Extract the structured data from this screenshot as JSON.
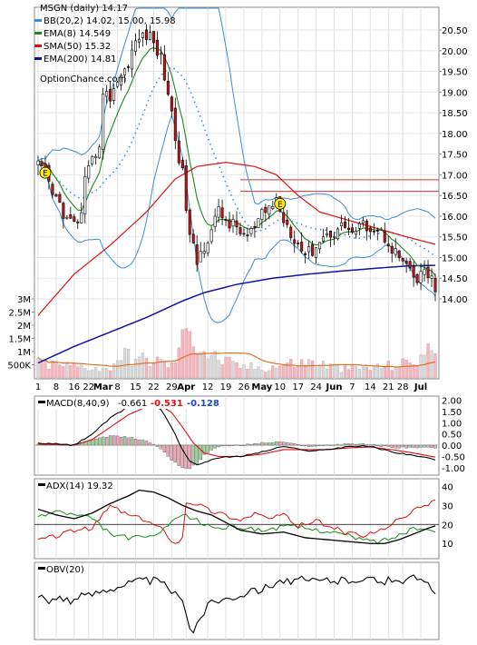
{
  "chart_data": {
    "type": "line",
    "symbol": "MSGN",
    "title": "MSGN (daily) 14.17",
    "legend": [
      {
        "label": "BB(20,2) 14.02, 15.00, 15.98",
        "color": "#3b8fd6"
      },
      {
        "label": "EMA(8) 14.549",
        "color": "#1a8a1a"
      },
      {
        "label": "SMA(50) 15.32",
        "color": "#dd1111"
      },
      {
        "label": "EMA(200) 14.81",
        "color": "#1111aa"
      }
    ],
    "watermark": "OptionChance.com",
    "x_tick_labels": [
      "1",
      "8",
      "16",
      "22",
      "Mar",
      "8",
      "15",
      "22",
      "29",
      "Apr",
      "12",
      "19",
      "26",
      "May",
      "10",
      "17",
      "24",
      "Jun",
      "7",
      "14",
      "21",
      "28",
      "Jul"
    ],
    "x_tick_bold": [
      "Mar",
      "Apr",
      "May",
      "Jun",
      "Jul"
    ],
    "price_axis": {
      "ticks": [
        "20.50",
        "20.00",
        "19.50",
        "19.00",
        "18.50",
        "18.00",
        "17.50",
        "17.00",
        "16.50",
        "16.00",
        "15.50",
        "15.00",
        "14.50",
        "14.00"
      ],
      "ylim": [
        13.85,
        20.6
      ]
    },
    "volume_axis": {
      "ticks": [
        "3M",
        "2.5M",
        "2M",
        "1.5M",
        "1M",
        "500K"
      ],
      "ylim": [
        0,
        3200000
      ]
    },
    "horizontal_lines": [
      16.88,
      16.6
    ],
    "earnings_markers": [
      {
        "label": "E",
        "day": 2,
        "price": 17.05
      },
      {
        "label": "E",
        "day": 67,
        "price": 16.3
      }
    ],
    "price_anchors": [
      [
        0,
        17.2
      ],
      [
        2,
        17.0
      ],
      [
        4,
        16.5
      ],
      [
        6,
        16.3
      ],
      [
        8,
        15.9
      ],
      [
        10,
        15.8
      ],
      [
        12,
        16.0
      ],
      [
        13,
        16.8
      ],
      [
        15,
        17.3
      ],
      [
        17,
        17.8
      ],
      [
        18,
        18.9
      ],
      [
        20,
        18.9
      ],
      [
        22,
        19.3
      ],
      [
        24,
        19.5
      ],
      [
        26,
        20.0
      ],
      [
        28,
        20.3
      ],
      [
        30,
        20.4
      ],
      [
        32,
        20.2
      ],
      [
        34,
        19.8
      ],
      [
        36,
        19.0
      ],
      [
        38,
        17.9
      ],
      [
        40,
        17.0
      ],
      [
        42,
        15.5
      ],
      [
        44,
        14.9
      ],
      [
        46,
        15.3
      ],
      [
        48,
        15.7
      ],
      [
        50,
        16.1
      ],
      [
        52,
        15.9
      ],
      [
        55,
        15.7
      ],
      [
        58,
        15.5
      ],
      [
        60,
        15.7
      ],
      [
        62,
        16.0
      ],
      [
        64,
        16.2
      ],
      [
        66,
        16.4
      ],
      [
        67,
        16.1
      ],
      [
        69,
        15.8
      ],
      [
        71,
        15.5
      ],
      [
        73,
        15.2
      ],
      [
        75,
        15.1
      ],
      [
        77,
        15.3
      ],
      [
        79,
        15.5
      ],
      [
        81,
        15.6
      ],
      [
        83,
        15.7
      ],
      [
        85,
        15.8
      ],
      [
        87,
        15.6
      ],
      [
        89,
        15.7
      ],
      [
        91,
        15.8
      ],
      [
        93,
        15.7
      ],
      [
        95,
        15.6
      ],
      [
        97,
        15.4
      ],
      [
        99,
        15.1
      ],
      [
        101,
        14.9
      ],
      [
        103,
        14.6
      ],
      [
        105,
        14.4
      ],
      [
        107,
        14.7
      ],
      [
        109,
        14.5
      ],
      [
        110,
        14.17
      ]
    ],
    "volume_anchors": [
      [
        0,
        550000
      ],
      [
        5,
        500000
      ],
      [
        10,
        450000
      ],
      [
        15,
        420000
      ],
      [
        19,
        300000
      ],
      [
        23,
        900000
      ],
      [
        28,
        700000
      ],
      [
        33,
        650000
      ],
      [
        37,
        450000
      ],
      [
        41,
        1700000
      ],
      [
        42,
        2700000
      ],
      [
        43,
        1500000
      ],
      [
        47,
        900000
      ],
      [
        55,
        450000
      ],
      [
        63,
        380000
      ],
      [
        70,
        550000
      ],
      [
        76,
        600000
      ],
      [
        84,
        350000
      ],
      [
        92,
        380000
      ],
      [
        100,
        500000
      ],
      [
        104,
        650000
      ],
      [
        108,
        950000
      ],
      [
        110,
        1500000
      ]
    ],
    "macd_panel": {
      "label": "MACD(8,40,9)",
      "values": [
        "-0.661",
        "-0.531",
        "-0.128"
      ],
      "colors": [
        "#000000",
        "#dd1111",
        "#2244cc"
      ],
      "ticks": [
        "2.00",
        "1.50",
        "1.00",
        "0.50",
        "0.00",
        "-0.50",
        "-1.00"
      ],
      "ylim": [
        -1.25,
        2.1
      ],
      "macd_anchors": [
        [
          0,
          0.1
        ],
        [
          10,
          0.0
        ],
        [
          15,
          0.5
        ],
        [
          20,
          1.2
        ],
        [
          25,
          1.7
        ],
        [
          30,
          1.9
        ],
        [
          34,
          1.6
        ],
        [
          37,
          0.8
        ],
        [
          40,
          -0.2
        ],
        [
          42,
          -0.7
        ],
        [
          44,
          -0.9
        ],
        [
          46,
          -0.75
        ],
        [
          50,
          -0.55
        ],
        [
          56,
          -0.5
        ],
        [
          62,
          -0.3
        ],
        [
          68,
          -0.05
        ],
        [
          74,
          -0.25
        ],
        [
          80,
          -0.2
        ],
        [
          86,
          -0.05
        ],
        [
          92,
          -0.05
        ],
        [
          98,
          -0.3
        ],
        [
          104,
          -0.45
        ],
        [
          110,
          -0.66
        ]
      ],
      "signal_anchors": [
        [
          0,
          0.05
        ],
        [
          10,
          0.0
        ],
        [
          15,
          0.25
        ],
        [
          20,
          0.8
        ],
        [
          25,
          1.35
        ],
        [
          30,
          1.7
        ],
        [
          34,
          1.75
        ],
        [
          37,
          1.45
        ],
        [
          40,
          0.8
        ],
        [
          43,
          0.1
        ],
        [
          46,
          -0.35
        ],
        [
          50,
          -0.5
        ],
        [
          56,
          -0.5
        ],
        [
          62,
          -0.4
        ],
        [
          68,
          -0.2
        ],
        [
          74,
          -0.2
        ],
        [
          80,
          -0.2
        ],
        [
          86,
          -0.12
        ],
        [
          92,
          -0.08
        ],
        [
          98,
          -0.2
        ],
        [
          104,
          -0.35
        ],
        [
          110,
          -0.53
        ]
      ]
    },
    "adx_panel": {
      "label": "ADX(14) 19.32",
      "ticks": [
        "40",
        "30",
        "20",
        "10"
      ],
      "ylim": [
        2,
        44
      ],
      "reference_lines": [
        20
      ],
      "adx_anchors": [
        [
          0,
          28
        ],
        [
          5,
          25
        ],
        [
          10,
          23
        ],
        [
          15,
          26
        ],
        [
          20,
          31
        ],
        [
          25,
          35
        ],
        [
          28,
          38
        ],
        [
          32,
          37
        ],
        [
          36,
          34
        ],
        [
          40,
          30
        ],
        [
          44,
          27
        ],
        [
          48,
          25
        ],
        [
          52,
          21
        ],
        [
          56,
          17
        ],
        [
          62,
          15
        ],
        [
          68,
          16
        ],
        [
          74,
          13
        ],
        [
          80,
          12
        ],
        [
          86,
          11
        ],
        [
          92,
          10
        ],
        [
          96,
          10
        ],
        [
          100,
          12
        ],
        [
          104,
          15
        ],
        [
          108,
          18
        ],
        [
          110,
          19.3
        ]
      ],
      "plus_di_anchors": [
        [
          0,
          12
        ],
        [
          5,
          14
        ],
        [
          10,
          17
        ],
        [
          15,
          18
        ],
        [
          20,
          30
        ],
        [
          25,
          25
        ],
        [
          30,
          22
        ],
        [
          34,
          18
        ],
        [
          38,
          10
        ],
        [
          40,
          13
        ],
        [
          41,
          32
        ],
        [
          44,
          31
        ],
        [
          48,
          27
        ],
        [
          52,
          25
        ],
        [
          56,
          22
        ],
        [
          60,
          26
        ],
        [
          64,
          23
        ],
        [
          68,
          25
        ],
        [
          72,
          19
        ],
        [
          76,
          22
        ],
        [
          80,
          20
        ],
        [
          86,
          15
        ],
        [
          90,
          14
        ],
        [
          94,
          16
        ],
        [
          98,
          20
        ],
        [
          102,
          25
        ],
        [
          105,
          28
        ],
        [
          108,
          31
        ],
        [
          110,
          33
        ]
      ],
      "minus_di_anchors": [
        [
          0,
          24
        ],
        [
          5,
          27
        ],
        [
          10,
          25
        ],
        [
          15,
          23
        ],
        [
          20,
          15
        ],
        [
          25,
          13
        ],
        [
          30,
          13
        ],
        [
          34,
          16
        ],
        [
          38,
          22
        ],
        [
          40,
          25
        ],
        [
          42,
          24
        ],
        [
          46,
          20
        ],
        [
          50,
          18
        ],
        [
          54,
          19
        ],
        [
          58,
          18
        ],
        [
          62,
          17
        ],
        [
          66,
          18
        ],
        [
          70,
          19
        ],
        [
          74,
          18
        ],
        [
          78,
          17
        ],
        [
          82,
          16
        ],
        [
          86,
          14
        ],
        [
          90,
          12
        ],
        [
          94,
          11
        ],
        [
          98,
          13
        ],
        [
          102,
          16
        ],
        [
          105,
          18
        ],
        [
          108,
          17
        ],
        [
          110,
          16
        ]
      ]
    },
    "obv_panel": {
      "label": "OBV(20)",
      "obv_anchors": [
        [
          0,
          0.55
        ],
        [
          3,
          0.48
        ],
        [
          6,
          0.58
        ],
        [
          9,
          0.5
        ],
        [
          12,
          0.56
        ],
        [
          15,
          0.6
        ],
        [
          18,
          0.66
        ],
        [
          21,
          0.7
        ],
        [
          24,
          0.74
        ],
        [
          27,
          0.78
        ],
        [
          30,
          0.8
        ],
        [
          33,
          0.78
        ],
        [
          36,
          0.7
        ],
        [
          39,
          0.55
        ],
        [
          41,
          0.35
        ],
        [
          42,
          0.15
        ],
        [
          43,
          0.05
        ],
        [
          44,
          0.2
        ],
        [
          46,
          0.35
        ],
        [
          48,
          0.5
        ],
        [
          50,
          0.52
        ],
        [
          53,
          0.55
        ],
        [
          56,
          0.6
        ],
        [
          59,
          0.62
        ],
        [
          62,
          0.68
        ],
        [
          64,
          0.72
        ],
        [
          66,
          0.78
        ],
        [
          68,
          0.8
        ],
        [
          70,
          0.76
        ],
        [
          73,
          0.8
        ],
        [
          76,
          0.78
        ],
        [
          80,
          0.8
        ],
        [
          84,
          0.79
        ],
        [
          88,
          0.82
        ],
        [
          92,
          0.8
        ],
        [
          96,
          0.78
        ],
        [
          100,
          0.8
        ],
        [
          104,
          0.82
        ],
        [
          107,
          0.78
        ],
        [
          110,
          0.6
        ]
      ]
    }
  }
}
